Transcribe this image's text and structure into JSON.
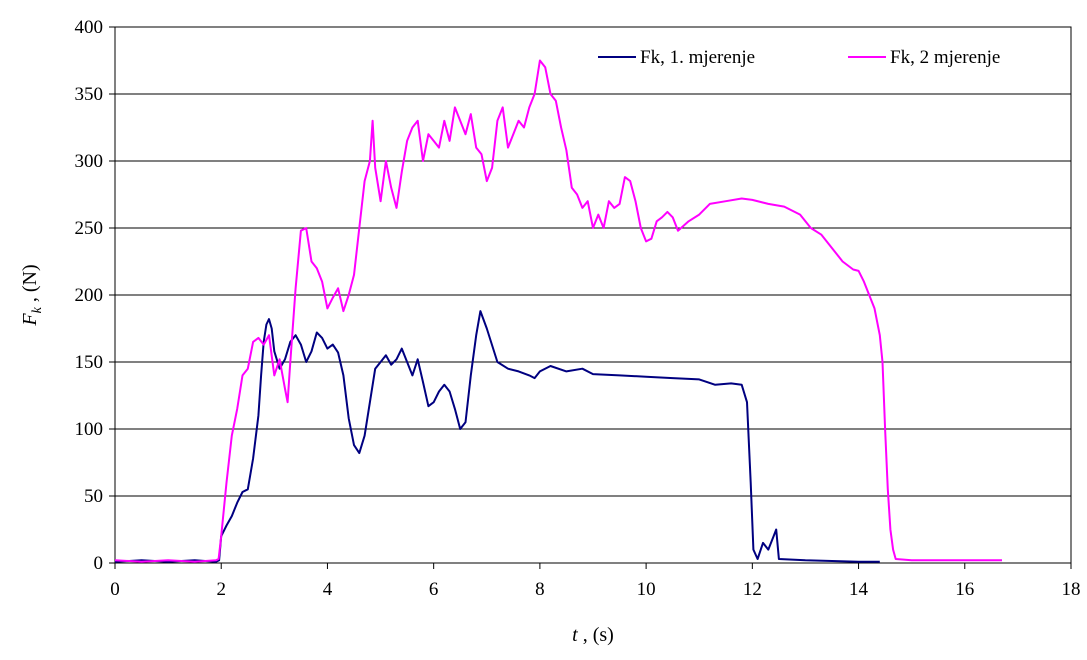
{
  "chart_data": {
    "type": "line",
    "xlabel": {
      "var": "t",
      "rest": " , (s)"
    },
    "ylabel": {
      "var": "F",
      "sub": "k",
      "rest": " , (N)"
    },
    "xlim": [
      0,
      18
    ],
    "ylim": [
      0,
      400
    ],
    "xticks": [
      0,
      2,
      4,
      6,
      8,
      10,
      12,
      14,
      16,
      18
    ],
    "yticks": [
      0,
      50,
      100,
      150,
      200,
      250,
      300,
      350,
      400
    ],
    "grid": "horizontal",
    "legend_position": "top-right",
    "series": [
      {
        "name": "Fk, 1. mjerenje",
        "color": "#000080",
        "points": [
          [
            0,
            1
          ],
          [
            0.5,
            2
          ],
          [
            1.0,
            1
          ],
          [
            1.5,
            2
          ],
          [
            1.9,
            1
          ],
          [
            1.96,
            2
          ],
          [
            2.0,
            20
          ],
          [
            2.1,
            28
          ],
          [
            2.2,
            35
          ],
          [
            2.3,
            45
          ],
          [
            2.4,
            53
          ],
          [
            2.5,
            55
          ],
          [
            2.6,
            78
          ],
          [
            2.7,
            110
          ],
          [
            2.75,
            140
          ],
          [
            2.8,
            165
          ],
          [
            2.85,
            178
          ],
          [
            2.9,
            182
          ],
          [
            2.95,
            175
          ],
          [
            3.0,
            158
          ],
          [
            3.1,
            145
          ],
          [
            3.2,
            152
          ],
          [
            3.3,
            165
          ],
          [
            3.4,
            170
          ],
          [
            3.5,
            163
          ],
          [
            3.6,
            150
          ],
          [
            3.7,
            158
          ],
          [
            3.8,
            172
          ],
          [
            3.9,
            168
          ],
          [
            4.0,
            160
          ],
          [
            4.1,
            163
          ],
          [
            4.2,
            157
          ],
          [
            4.3,
            140
          ],
          [
            4.4,
            108
          ],
          [
            4.5,
            88
          ],
          [
            4.6,
            82
          ],
          [
            4.7,
            95
          ],
          [
            4.8,
            120
          ],
          [
            4.9,
            145
          ],
          [
            5.0,
            150
          ],
          [
            5.1,
            155
          ],
          [
            5.2,
            148
          ],
          [
            5.3,
            152
          ],
          [
            5.4,
            160
          ],
          [
            5.5,
            150
          ],
          [
            5.6,
            140
          ],
          [
            5.7,
            152
          ],
          [
            5.8,
            135
          ],
          [
            5.9,
            117
          ],
          [
            6.0,
            120
          ],
          [
            6.1,
            128
          ],
          [
            6.2,
            133
          ],
          [
            6.3,
            128
          ],
          [
            6.4,
            115
          ],
          [
            6.5,
            100
          ],
          [
            6.6,
            105
          ],
          [
            6.7,
            140
          ],
          [
            6.8,
            170
          ],
          [
            6.88,
            188
          ],
          [
            7.0,
            175
          ],
          [
            7.2,
            150
          ],
          [
            7.4,
            145
          ],
          [
            7.6,
            143
          ],
          [
            7.8,
            140
          ],
          [
            7.9,
            138
          ],
          [
            8.0,
            143
          ],
          [
            8.2,
            147
          ],
          [
            8.5,
            143
          ],
          [
            8.8,
            145
          ],
          [
            9.0,
            141
          ],
          [
            9.5,
            140
          ],
          [
            10.0,
            139
          ],
          [
            10.5,
            138
          ],
          [
            11.0,
            137
          ],
          [
            11.3,
            133
          ],
          [
            11.6,
            134
          ],
          [
            11.8,
            133
          ],
          [
            11.9,
            120
          ],
          [
            11.97,
            60
          ],
          [
            12.02,
            10
          ],
          [
            12.1,
            3
          ],
          [
            12.2,
            15
          ],
          [
            12.3,
            10
          ],
          [
            12.4,
            20
          ],
          [
            12.45,
            25
          ],
          [
            12.5,
            3
          ],
          [
            13.0,
            2
          ],
          [
            14.0,
            1
          ],
          [
            14.4,
            1
          ]
        ]
      },
      {
        "name": "Fk, 2 mjerenje",
        "color": "#ff00ff",
        "points": [
          [
            0,
            2
          ],
          [
            0.5,
            1
          ],
          [
            1.0,
            2
          ],
          [
            1.5,
            1
          ],
          [
            1.9,
            2
          ],
          [
            1.95,
            3
          ],
          [
            2.0,
            20
          ],
          [
            2.1,
            60
          ],
          [
            2.2,
            95
          ],
          [
            2.3,
            115
          ],
          [
            2.4,
            140
          ],
          [
            2.5,
            145
          ],
          [
            2.6,
            165
          ],
          [
            2.7,
            168
          ],
          [
            2.8,
            163
          ],
          [
            2.9,
            170
          ],
          [
            3.0,
            140
          ],
          [
            3.1,
            152
          ],
          [
            3.2,
            130
          ],
          [
            3.25,
            120
          ],
          [
            3.3,
            150
          ],
          [
            3.4,
            205
          ],
          [
            3.5,
            248
          ],
          [
            3.6,
            250
          ],
          [
            3.7,
            225
          ],
          [
            3.8,
            220
          ],
          [
            3.9,
            210
          ],
          [
            4.0,
            190
          ],
          [
            4.1,
            198
          ],
          [
            4.2,
            205
          ],
          [
            4.3,
            188
          ],
          [
            4.4,
            200
          ],
          [
            4.5,
            215
          ],
          [
            4.6,
            250
          ],
          [
            4.7,
            285
          ],
          [
            4.8,
            300
          ],
          [
            4.85,
            330
          ],
          [
            4.9,
            295
          ],
          [
            5.0,
            270
          ],
          [
            5.1,
            300
          ],
          [
            5.2,
            280
          ],
          [
            5.3,
            265
          ],
          [
            5.4,
            292
          ],
          [
            5.5,
            315
          ],
          [
            5.6,
            325
          ],
          [
            5.7,
            330
          ],
          [
            5.8,
            300
          ],
          [
            5.9,
            320
          ],
          [
            6.0,
            315
          ],
          [
            6.1,
            310
          ],
          [
            6.2,
            330
          ],
          [
            6.3,
            315
          ],
          [
            6.4,
            340
          ],
          [
            6.5,
            330
          ],
          [
            6.6,
            320
          ],
          [
            6.7,
            335
          ],
          [
            6.8,
            310
          ],
          [
            6.9,
            305
          ],
          [
            7.0,
            285
          ],
          [
            7.1,
            295
          ],
          [
            7.2,
            330
          ],
          [
            7.3,
            340
          ],
          [
            7.4,
            310
          ],
          [
            7.5,
            320
          ],
          [
            7.6,
            330
          ],
          [
            7.7,
            325
          ],
          [
            7.8,
            340
          ],
          [
            7.9,
            350
          ],
          [
            8.0,
            375
          ],
          [
            8.1,
            370
          ],
          [
            8.2,
            350
          ],
          [
            8.3,
            345
          ],
          [
            8.4,
            325
          ],
          [
            8.5,
            308
          ],
          [
            8.6,
            280
          ],
          [
            8.7,
            275
          ],
          [
            8.8,
            265
          ],
          [
            8.9,
            270
          ],
          [
            9.0,
            250
          ],
          [
            9.1,
            260
          ],
          [
            9.2,
            250
          ],
          [
            9.3,
            270
          ],
          [
            9.4,
            265
          ],
          [
            9.5,
            268
          ],
          [
            9.6,
            288
          ],
          [
            9.7,
            285
          ],
          [
            9.8,
            270
          ],
          [
            9.9,
            250
          ],
          [
            10.0,
            240
          ],
          [
            10.1,
            242
          ],
          [
            10.2,
            255
          ],
          [
            10.3,
            258
          ],
          [
            10.4,
            262
          ],
          [
            10.5,
            258
          ],
          [
            10.6,
            248
          ],
          [
            10.8,
            255
          ],
          [
            11.0,
            260
          ],
          [
            11.2,
            268
          ],
          [
            11.5,
            270
          ],
          [
            11.8,
            272
          ],
          [
            12.0,
            271
          ],
          [
            12.3,
            268
          ],
          [
            12.6,
            266
          ],
          [
            12.9,
            260
          ],
          [
            13.1,
            250
          ],
          [
            13.3,
            245
          ],
          [
            13.5,
            235
          ],
          [
            13.7,
            225
          ],
          [
            13.9,
            219
          ],
          [
            14.0,
            218
          ],
          [
            14.1,
            210
          ],
          [
            14.2,
            200
          ],
          [
            14.3,
            190
          ],
          [
            14.4,
            170
          ],
          [
            14.45,
            150
          ],
          [
            14.5,
            100
          ],
          [
            14.55,
            55
          ],
          [
            14.6,
            25
          ],
          [
            14.65,
            10
          ],
          [
            14.7,
            3
          ],
          [
            15.0,
            2
          ],
          [
            15.5,
            2
          ],
          [
            16.0,
            2
          ],
          [
            16.5,
            2
          ],
          [
            16.7,
            2
          ]
        ]
      }
    ]
  }
}
